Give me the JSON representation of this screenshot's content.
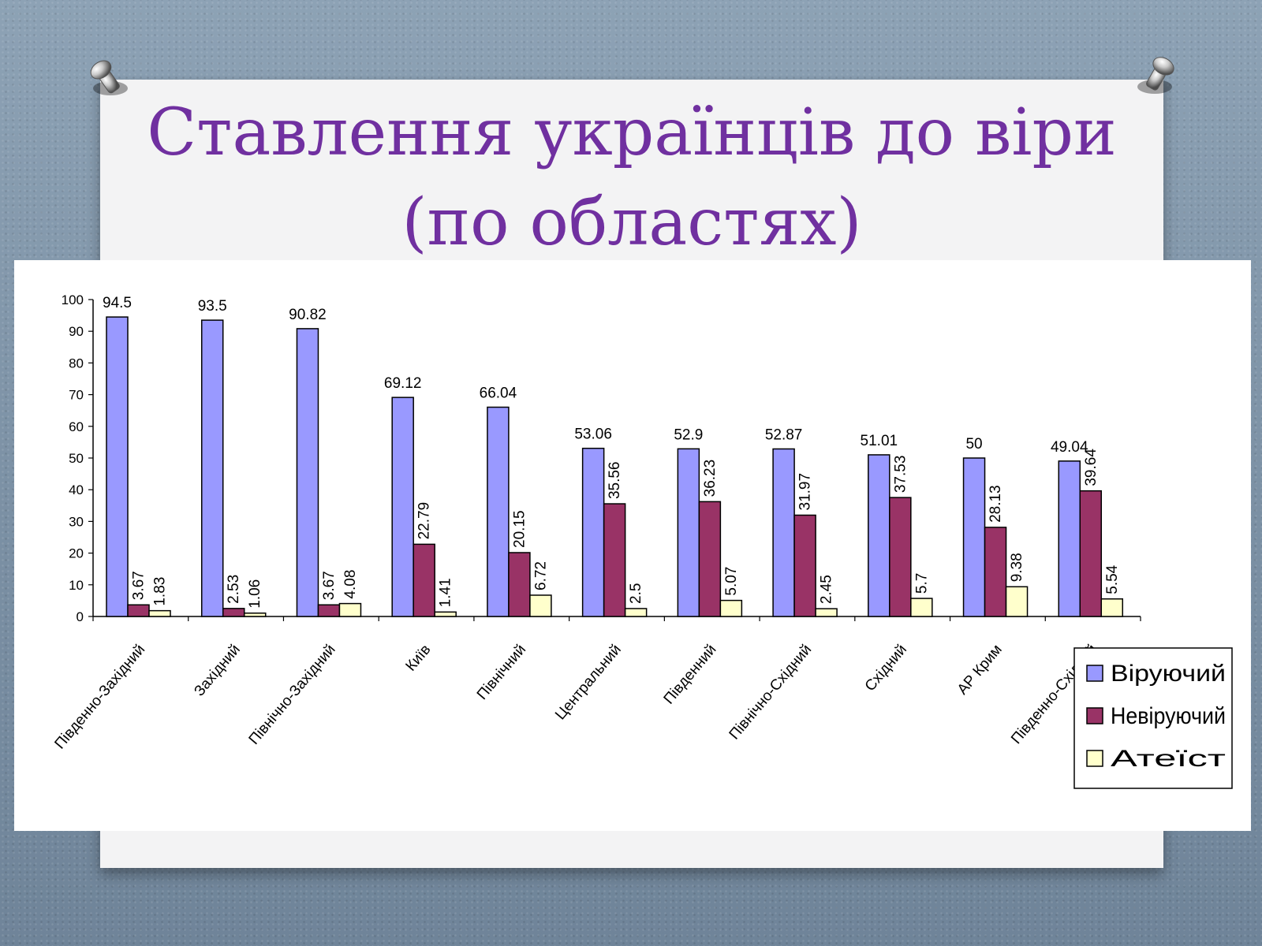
{
  "slide": {
    "title_line1": "Ставлення українців до віри",
    "title_line2": "(по областях)"
  },
  "colors": {
    "title": "#7030a0",
    "series": [
      "#9999ff",
      "#993366",
      "#ffffcc"
    ]
  },
  "chart_data": {
    "type": "bar",
    "title": "",
    "xlabel": "",
    "ylabel": "",
    "ylim": [
      0,
      100
    ],
    "yticks": [
      0,
      10,
      20,
      30,
      40,
      50,
      60,
      70,
      80,
      90,
      100
    ],
    "grid": false,
    "legend_position": "right",
    "categories": [
      "Південно-Західний",
      "Західний",
      "Північно-Західний",
      "Київ",
      "Північний",
      "Центральний",
      "Південний",
      "Північно-Східний",
      "Східний",
      "АР Крим",
      "Південно-Східний"
    ],
    "series": [
      {
        "name": "Віруючий",
        "values": [
          94.5,
          93.5,
          90.82,
          69.12,
          66.04,
          53.06,
          52.9,
          52.87,
          51.01,
          50,
          49.04
        ],
        "labels": [
          "94.5",
          "93.5",
          "90.82",
          "69.12",
          "66.04",
          "53.06",
          "52.9",
          "52.87",
          "51.01",
          "50",
          "49.04"
        ]
      },
      {
        "name": "Невіруючий",
        "values": [
          3.67,
          2.53,
          3.67,
          22.79,
          20.15,
          35.56,
          36.23,
          31.97,
          37.53,
          28.13,
          39.64
        ],
        "labels": [
          "3.67",
          "2.53",
          "3.67",
          "22.79",
          "20.15",
          "35.56",
          "36.23",
          "31.97",
          "37.53",
          "28.13",
          "39.64"
        ]
      },
      {
        "name": "Атеїст",
        "values": [
          1.83,
          1.06,
          4.08,
          1.41,
          6.72,
          2.5,
          5.07,
          2.45,
          5.7,
          9.38,
          5.54
        ],
        "labels": [
          "1.83",
          "1.06",
          "4.08",
          "1.41",
          "6.72",
          "2.5",
          "5.07",
          "2.45",
          "5.7",
          "9.38",
          "5.54"
        ]
      }
    ]
  }
}
